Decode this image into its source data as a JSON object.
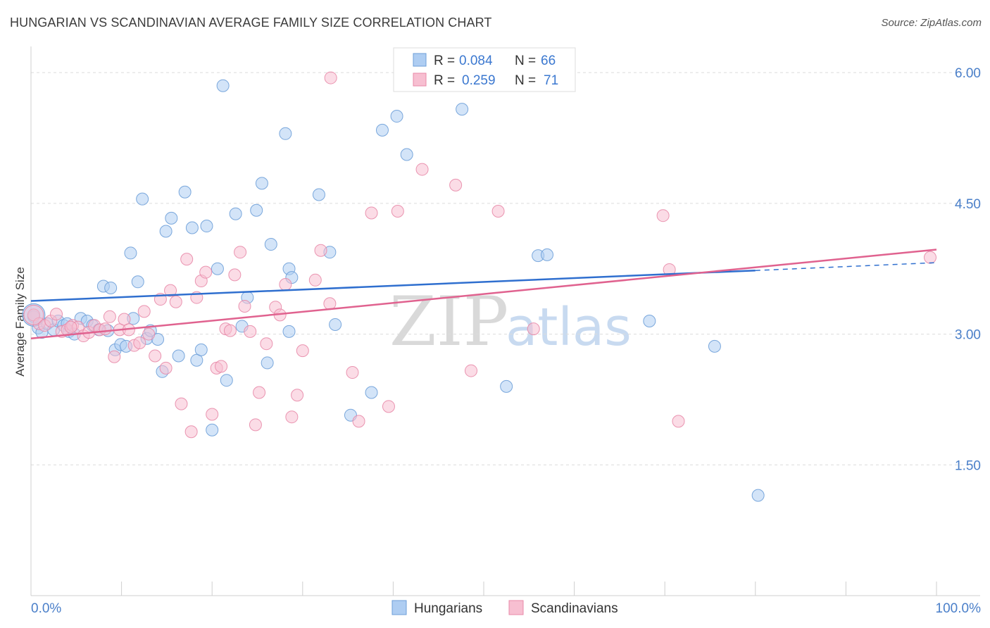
{
  "header": {
    "title": "HUNGARIAN VS SCANDINAVIAN AVERAGE FAMILY SIZE CORRELATION CHART",
    "source": "Source: ZipAtlas.com"
  },
  "watermark": {
    "zip": "ZIP",
    "atlas": "atlas"
  },
  "legend_box": {
    "rows": [
      {
        "r_label": "R =",
        "r_value": "0.084",
        "n_label": "N =",
        "n_value": "66"
      },
      {
        "r_label": "R =",
        "r_value": "0.259",
        "n_label": "N =",
        "n_value": "71"
      }
    ]
  },
  "bottom_legend": [
    "Hungarians",
    "Scandinavians"
  ],
  "colors": {
    "hungarians_fill": "#aecdf2",
    "hungarians_stroke": "#6d9fd8",
    "hungarians_line": "#2f6fcf",
    "scandinavians_fill": "#f7bfd1",
    "scandinavians_stroke": "#e88aa8",
    "scandinavians_line": "#e0628f",
    "tick_label": "#4a7fc9"
  },
  "chart_data": {
    "type": "scatter",
    "title": "HUNGARIAN VS SCANDINAVIAN AVERAGE FAMILY SIZE CORRELATION CHART",
    "xlabel": "",
    "ylabel": "Average Family Size",
    "xlim": [
      0,
      100
    ],
    "ylim": [
      0,
      6.3
    ],
    "x_tick_labels": [
      "0.0%",
      "100.0%"
    ],
    "y_ticks": [
      1.5,
      3.0,
      4.5,
      6.0
    ],
    "y_tick_labels": [
      "1.50",
      "3.00",
      "4.50",
      "6.00"
    ],
    "grid": "horizontal dashed",
    "legend_position": "top-center",
    "series": [
      {
        "name": "Hungarians",
        "r": 0.084,
        "n": 66,
        "trend": {
          "x": [
            0,
            80
          ],
          "y": [
            3.38,
            3.73
          ],
          "dashed_extension_to": [
            100,
            3.82
          ]
        },
        "points": [
          [
            0.3,
            3.2
          ],
          [
            0.8,
            3.07
          ],
          [
            1.2,
            3.02
          ],
          [
            1.8,
            3.12
          ],
          [
            2.5,
            3.05
          ],
          [
            3.0,
            3.15
          ],
          [
            3.6,
            3.1
          ],
          [
            4.2,
            3.03
          ],
          [
            4.8,
            3.0
          ],
          [
            5.5,
            3.18
          ],
          [
            6.2,
            3.15
          ],
          [
            6.8,
            3.1
          ],
          [
            7.5,
            3.05
          ],
          [
            8.0,
            3.55
          ],
          [
            8.5,
            3.04
          ],
          [
            8.8,
            3.53
          ],
          [
            9.3,
            2.82
          ],
          [
            9.9,
            2.88
          ],
          [
            10.5,
            2.86
          ],
          [
            11.0,
            3.93
          ],
          [
            11.3,
            3.18
          ],
          [
            11.8,
            3.6
          ],
          [
            12.3,
            4.55
          ],
          [
            12.8,
            2.95
          ],
          [
            13.2,
            3.04
          ],
          [
            14.0,
            2.94
          ],
          [
            14.5,
            2.57
          ],
          [
            14.9,
            4.18
          ],
          [
            15.5,
            4.33
          ],
          [
            16.3,
            2.75
          ],
          [
            17.0,
            4.63
          ],
          [
            17.8,
            4.22
          ],
          [
            18.3,
            2.7
          ],
          [
            18.8,
            2.82
          ],
          [
            19.4,
            4.24
          ],
          [
            20.0,
            1.9
          ],
          [
            20.6,
            3.75
          ],
          [
            21.2,
            5.85
          ],
          [
            21.6,
            2.47
          ],
          [
            22.6,
            4.38
          ],
          [
            23.3,
            3.09
          ],
          [
            23.9,
            3.42
          ],
          [
            24.9,
            4.42
          ],
          [
            25.5,
            4.73
          ],
          [
            26.1,
            2.67
          ],
          [
            26.5,
            4.03
          ],
          [
            28.5,
            3.75
          ],
          [
            28.8,
            3.65
          ],
          [
            28.1,
            5.3
          ],
          [
            28.5,
            3.03
          ],
          [
            31.8,
            4.6
          ],
          [
            33.0,
            3.94
          ],
          [
            33.6,
            3.11
          ],
          [
            35.3,
            2.07
          ],
          [
            37.6,
            2.33
          ],
          [
            38.8,
            5.34
          ],
          [
            40.4,
            5.5
          ],
          [
            41.5,
            5.06
          ],
          [
            47.6,
            5.58
          ],
          [
            52.5,
            2.4
          ],
          [
            56.0,
            3.9
          ],
          [
            68.3,
            3.15
          ],
          [
            75.5,
            2.86
          ],
          [
            80.3,
            1.15
          ],
          [
            57.0,
            3.91
          ],
          [
            4.0,
            3.12
          ]
        ]
      },
      {
        "name": "Scandinavians",
        "r": 0.259,
        "n": 71,
        "trend": {
          "x": [
            0,
            100
          ],
          "y": [
            2.95,
            3.97
          ]
        },
        "points": [
          [
            0.3,
            3.22
          ],
          [
            0.9,
            3.12
          ],
          [
            1.5,
            3.1
          ],
          [
            2.2,
            3.15
          ],
          [
            2.8,
            3.23
          ],
          [
            3.4,
            3.03
          ],
          [
            4.0,
            3.05
          ],
          [
            4.6,
            3.1
          ],
          [
            5.2,
            3.08
          ],
          [
            5.8,
            2.98
          ],
          [
            6.4,
            3.02
          ],
          [
            7.0,
            3.1
          ],
          [
            7.6,
            3.05
          ],
          [
            8.2,
            3.06
          ],
          [
            8.7,
            3.2
          ],
          [
            9.2,
            2.74
          ],
          [
            9.8,
            3.05
          ],
          [
            10.3,
            3.17
          ],
          [
            10.8,
            3.05
          ],
          [
            11.4,
            2.87
          ],
          [
            12.0,
            2.9
          ],
          [
            12.5,
            3.26
          ],
          [
            13.0,
            3.0
          ],
          [
            13.7,
            2.75
          ],
          [
            14.3,
            3.4
          ],
          [
            14.9,
            2.61
          ],
          [
            15.4,
            3.5
          ],
          [
            16.0,
            3.37
          ],
          [
            16.6,
            2.2
          ],
          [
            17.2,
            3.86
          ],
          [
            17.7,
            1.88
          ],
          [
            18.3,
            3.42
          ],
          [
            18.8,
            3.61
          ],
          [
            19.3,
            3.71
          ],
          [
            20.0,
            2.08
          ],
          [
            20.5,
            2.61
          ],
          [
            21.0,
            2.63
          ],
          [
            21.5,
            3.06
          ],
          [
            22.0,
            3.04
          ],
          [
            22.5,
            3.68
          ],
          [
            23.1,
            3.94
          ],
          [
            23.6,
            3.32
          ],
          [
            24.2,
            3.03
          ],
          [
            24.8,
            1.96
          ],
          [
            25.2,
            2.33
          ],
          [
            26.0,
            2.89
          ],
          [
            27.0,
            3.31
          ],
          [
            27.5,
            3.22
          ],
          [
            28.1,
            3.57
          ],
          [
            28.8,
            2.05
          ],
          [
            29.4,
            2.3
          ],
          [
            30.0,
            2.81
          ],
          [
            31.4,
            3.62
          ],
          [
            32.0,
            3.96
          ],
          [
            33.0,
            3.35
          ],
          [
            35.5,
            2.56
          ],
          [
            36.2,
            2.0
          ],
          [
            37.6,
            4.39
          ],
          [
            39.5,
            2.17
          ],
          [
            40.5,
            4.41
          ],
          [
            43.2,
            4.89
          ],
          [
            46.9,
            4.71
          ],
          [
            48.6,
            2.58
          ],
          [
            51.6,
            4.41
          ],
          [
            55.5,
            3.06
          ],
          [
            69.8,
            4.36
          ],
          [
            70.5,
            3.74
          ],
          [
            71.5,
            2.0
          ],
          [
            33.1,
            5.94
          ],
          [
            99.3,
            3.88
          ],
          [
            4.4,
            3.08
          ]
        ]
      }
    ]
  }
}
